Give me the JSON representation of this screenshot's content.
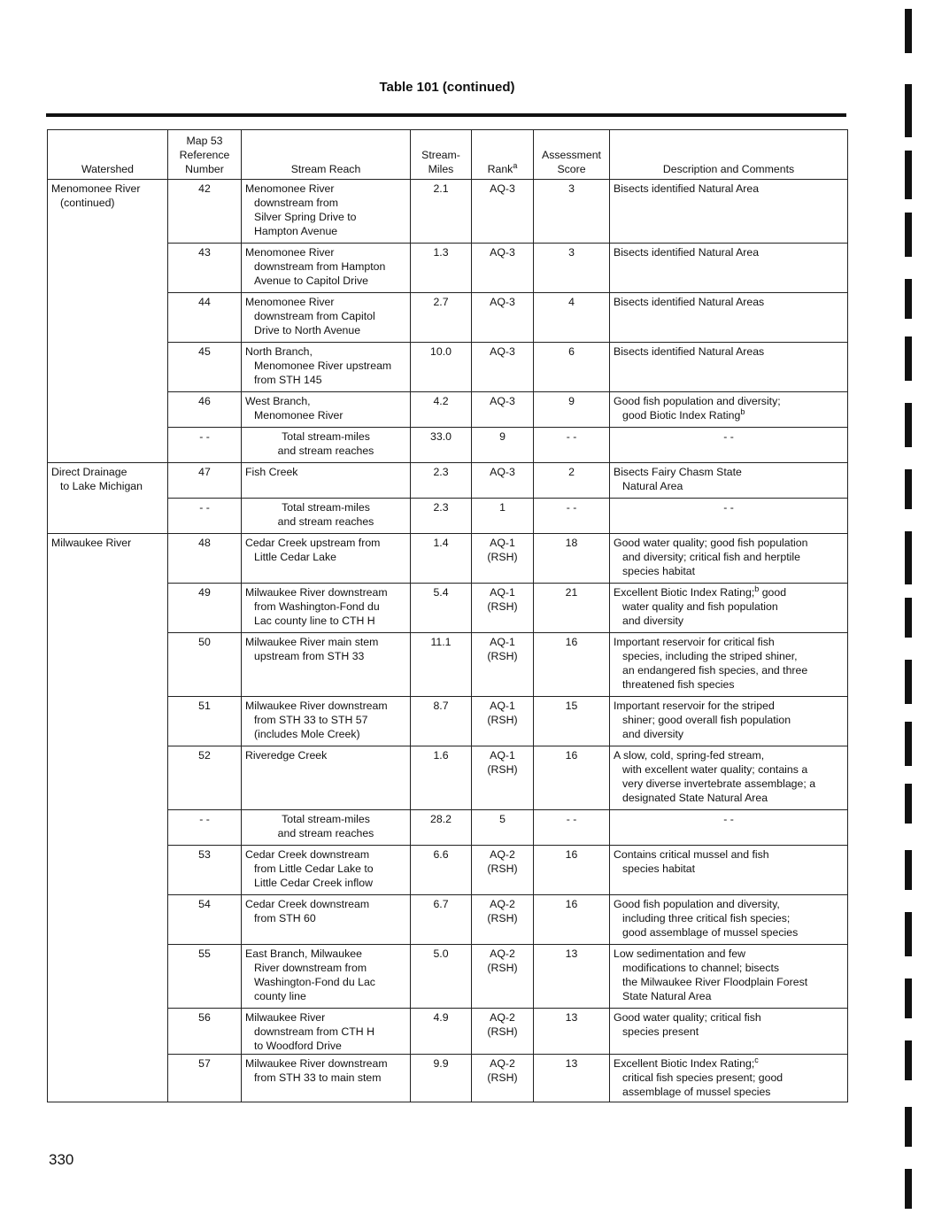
{
  "title": "Table 101 (continued)",
  "page_number": "330",
  "headers": {
    "watershed": "Watershed",
    "map_ref": [
      "Map 53",
      "Reference",
      "Number"
    ],
    "stream_reach": "Stream Reach",
    "stream_miles": [
      "Stream-",
      "Miles"
    ],
    "rank": "Rank",
    "rank_sup": "a",
    "score": [
      "Assessment",
      "Score"
    ],
    "description": "Description and Comments"
  },
  "groups": [
    {
      "watershed": [
        "Menomonee River",
        "(continued)"
      ],
      "rows": [
        {
          "ref": "42",
          "reach": [
            "Menomonee River",
            "downstream from",
            "Silver Spring Drive to",
            "Hampton Avenue"
          ],
          "miles": "2.1",
          "rank": [
            "AQ-3"
          ],
          "score": "3",
          "desc": [
            "Bisects identified Natural Area"
          ],
          "h": 72
        },
        {
          "ref": "43",
          "reach": [
            "Menomonee River",
            "downstream from Hampton",
            "Avenue to Capitol Drive"
          ],
          "miles": "1.3",
          "rank": [
            "AQ-3"
          ],
          "score": "3",
          "desc": [
            "Bisects identified Natural Area"
          ],
          "h": 56
        },
        {
          "ref": "44",
          "reach": [
            "Menomonee River",
            "downstream from Capitol",
            "Drive to North Avenue"
          ],
          "miles": "2.7",
          "rank": [
            "AQ-3"
          ],
          "score": "4",
          "desc": [
            "Bisects identified Natural Areas"
          ],
          "h": 56
        },
        {
          "ref": "45",
          "reach": [
            "North Branch,",
            "Menomonee River upstream",
            "from STH 145"
          ],
          "miles": "10.0",
          "rank": [
            "AQ-3"
          ],
          "score": "6",
          "desc": [
            "Bisects identified Natural Areas"
          ],
          "h": 56
        },
        {
          "ref": "46",
          "reach": [
            "West Branch,",
            "Menomonee River"
          ],
          "miles": "4.2",
          "rank": [
            "AQ-3"
          ],
          "score": "9",
          "desc": [
            "Good fish population and diversity;",
            "good Biotic Index Rating"
          ],
          "desc_sup": "b",
          "h": 40
        },
        {
          "ref": "- -",
          "reach": [
            "Total stream-miles",
            "and stream reaches"
          ],
          "total": true,
          "miles": "33.0",
          "rank": [
            "9"
          ],
          "score": "- -",
          "desc": [
            "- -"
          ],
          "h": 40
        }
      ]
    },
    {
      "watershed": [
        "Direct Drainage",
        "to Lake Michigan"
      ],
      "rows": [
        {
          "ref": "47",
          "reach": [
            "Fish Creek"
          ],
          "miles": "2.3",
          "rank": [
            "AQ-3"
          ],
          "score": "2",
          "desc": [
            "Bisects Fairy Chasm State",
            "Natural Area"
          ],
          "h": 40
        },
        {
          "ref": "- -",
          "reach": [
            "Total stream-miles",
            "and stream reaches"
          ],
          "total": true,
          "miles": "2.3",
          "rank": [
            "1"
          ],
          "score": "- -",
          "desc": [
            "- -"
          ],
          "h": 40
        }
      ]
    },
    {
      "watershed": [
        "Milwaukee River"
      ],
      "rows": [
        {
          "ref": "48",
          "reach": [
            "Cedar Creek upstream from",
            "Little Cedar Lake"
          ],
          "miles": "1.4",
          "rank": [
            "AQ-1",
            "(RSH)"
          ],
          "score": "18",
          "desc": [
            "Good water quality; good fish population",
            "and diversity; critical fish and herptile",
            "species habitat"
          ],
          "h": 56
        },
        {
          "ref": "49",
          "reach": [
            "Milwaukee River downstream",
            "from Washington-Fond du",
            "Lac county line to CTH H"
          ],
          "miles": "5.4",
          "rank": [
            "AQ-1",
            "(RSH)"
          ],
          "score": "21",
          "desc": [
            "Excellent Biotic Index Rating;",
            "water quality and fish population",
            "and diversity"
          ],
          "desc_sup_first": "b",
          "desc_first_tail": " good",
          "h": 56
        },
        {
          "ref": "50",
          "reach": [
            "Milwaukee River main stem",
            "upstream from STH 33"
          ],
          "miles": "11.1",
          "rank": [
            "AQ-1",
            "(RSH)"
          ],
          "score": "16",
          "desc": [
            "Important reservoir for critical fish",
            "species, including the striped shiner,",
            "an endangered fish species, and three",
            "threatened fish species"
          ],
          "h": 72
        },
        {
          "ref": "51",
          "reach": [
            "Milwaukee River downstream",
            "from STH 33 to STH 57",
            "(includes Mole Creek)"
          ],
          "miles": "8.7",
          "rank": [
            "AQ-1",
            "(RSH)"
          ],
          "score": "15",
          "desc": [
            "Important reservoir for the striped",
            "shiner; good overall fish population",
            "and diversity"
          ],
          "h": 56
        },
        {
          "ref": "52",
          "reach": [
            "Riveredge Creek"
          ],
          "miles": "1.6",
          "rank": [
            "AQ-1",
            "(RSH)"
          ],
          "score": "16",
          "desc": [
            "A slow, cold, spring-fed stream,",
            "with excellent water quality; contains a",
            "very diverse invertebrate assemblage; a",
            "designated State Natural Area"
          ],
          "h": 72
        },
        {
          "ref": "- -",
          "reach": [
            "Total stream-miles",
            "and stream reaches"
          ],
          "total": true,
          "miles": "28.2",
          "rank": [
            "5"
          ],
          "score": "- -",
          "desc": [
            "- -"
          ],
          "h": 40
        },
        {
          "ref": "53",
          "reach": [
            "Cedar Creek downstream",
            "from Little Cedar Lake to",
            "Little Cedar Creek inflow"
          ],
          "miles": "6.6",
          "rank": [
            "AQ-2",
            "(RSH)"
          ],
          "score": "16",
          "desc": [
            "Contains critical mussel and fish",
            "species habitat"
          ],
          "h": 56
        },
        {
          "ref": "54",
          "reach": [
            "Cedar Creek downstream",
            "from STH 60"
          ],
          "miles": "6.7",
          "rank": [
            "AQ-2",
            "(RSH)"
          ],
          "score": "16",
          "desc": [
            "Good fish population and diversity,",
            "including three critical fish species;",
            "good assemblage of mussel species"
          ],
          "h": 56
        },
        {
          "ref": "55",
          "reach": [
            "East Branch, Milwaukee",
            "River downstream from",
            "Washington-Fond du Lac",
            "county line"
          ],
          "miles": "5.0",
          "rank": [
            "AQ-2",
            "(RSH)"
          ],
          "score": "13",
          "desc": [
            "Low sedimentation and few",
            "modifications to channel; bisects",
            "the Milwaukee River Floodplain Forest",
            "State Natural Area"
          ],
          "h": 72
        },
        {
          "ref": "56",
          "reach": [
            "Milwaukee River",
            "downstream from CTH H",
            "to Woodford Drive"
          ],
          "miles": "4.9",
          "rank": [
            "AQ-2",
            "(RSH)"
          ],
          "score": "13",
          "desc": [
            "Good water quality; critical fish",
            "species present"
          ],
          "h": 52
        },
        {
          "ref": "57",
          "reach": [
            "Milwaukee River downstream",
            "from STH 33 to main stem"
          ],
          "miles": "9.9",
          "rank": [
            "AQ-2",
            "(RSH)"
          ],
          "score": "13",
          "desc": [
            "Excellent Biotic Index Rating;",
            "critical fish species present; good",
            "assemblage of mussel species"
          ],
          "desc_sup_first": "c",
          "h": 54
        }
      ]
    }
  ]
}
